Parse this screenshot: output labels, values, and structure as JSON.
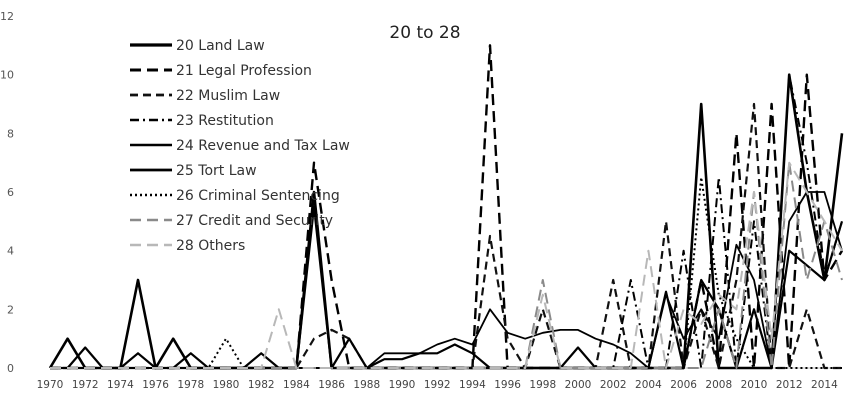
{
  "chart_data": {
    "type": "line",
    "title": "20 to 28",
    "xlabel": "",
    "ylabel": "",
    "ylim": [
      0,
      12
    ],
    "yticks": [
      0,
      2,
      4,
      6,
      8,
      10,
      12
    ],
    "xlim": [
      1970,
      2015
    ],
    "xtick_labels": [
      "1970",
      "1972",
      "1974",
      "1976",
      "1978",
      "1980",
      "1982",
      "1984",
      "1986",
      "1988",
      "1990",
      "1992",
      "1994",
      "1996",
      "1998",
      "2000",
      "2002",
      "2004",
      "2006",
      "2008",
      "2010",
      "2012",
      "2014"
    ],
    "grid": false,
    "legend_position": "upper-left",
    "x": [
      1970,
      1971,
      1972,
      1973,
      1974,
      1975,
      1976,
      1977,
      1978,
      1979,
      1980,
      1981,
      1982,
      1983,
      1984,
      1985,
      1986,
      1987,
      1988,
      1989,
      1990,
      1991,
      1992,
      1993,
      1994,
      1995,
      1996,
      1997,
      1998,
      1999,
      2000,
      2001,
      2002,
      2003,
      2004,
      2005,
      2006,
      2007,
      2008,
      2009,
      2010,
      2011,
      2012,
      2013,
      2014,
      2015
    ],
    "series": [
      {
        "name": "20 Land Law",
        "color": "#000000",
        "dash": "solid",
        "width": 2.6,
        "values": [
          0,
          1,
          0,
          0,
          0,
          3,
          0,
          1,
          0,
          0,
          0,
          0,
          0,
          0,
          0,
          6,
          0,
          0,
          0,
          0,
          0,
          0,
          0,
          0,
          0,
          0,
          0,
          0,
          0,
          0,
          0,
          0,
          0,
          0,
          0,
          0,
          0,
          9,
          0,
          0,
          0,
          0,
          10,
          6,
          3,
          8
        ]
      },
      {
        "name": "21 Legal Profession",
        "color": "#000000",
        "dash": "long-dash",
        "width": 2.4,
        "values": [
          0,
          0,
          0,
          0,
          0,
          0,
          0,
          0,
          0,
          0,
          0,
          0,
          0,
          0,
          0,
          7,
          3,
          0,
          0,
          0,
          0,
          0,
          0,
          0,
          0,
          11,
          0,
          0,
          0,
          0,
          0,
          0,
          0,
          0,
          0,
          0,
          0,
          3,
          0,
          8,
          0,
          9,
          0,
          10,
          3,
          4
        ]
      },
      {
        "name": "22 Muslim Law",
        "color": "#111111",
        "dash": "dash",
        "width": 2.2,
        "values": [
          0,
          0,
          0,
          0,
          0,
          0,
          0,
          0,
          0,
          0,
          0,
          0,
          0,
          0,
          0,
          1,
          1.3,
          1,
          0,
          0,
          0,
          0,
          0,
          0,
          0,
          4.5,
          1,
          0,
          2,
          0,
          0,
          0,
          3,
          0,
          0,
          5,
          0,
          2,
          0,
          3,
          9,
          0,
          0,
          2,
          0,
          0
        ]
      },
      {
        "name": "23 Restitution",
        "color": "#000000",
        "dash": "dash-dot",
        "width": 2.0,
        "values": [
          0,
          0,
          0,
          0,
          0,
          0,
          0,
          0,
          0,
          0,
          0,
          0,
          0,
          0,
          0,
          0,
          0,
          0,
          0,
          0,
          0,
          0,
          0,
          0,
          0,
          0,
          0,
          0,
          0,
          0,
          0,
          0,
          0,
          3,
          0,
          0,
          4,
          0,
          6.5,
          0,
          5,
          0,
          10,
          7,
          3,
          5
        ]
      },
      {
        "name": "24 Revenue and Tax Law",
        "color": "#000000",
        "dash": "solid",
        "width": 1.8,
        "values": [
          0,
          0,
          0,
          0,
          0,
          0,
          0,
          0,
          0,
          0,
          0,
          0,
          0,
          0,
          0,
          0,
          0,
          0,
          0,
          0.5,
          0.5,
          0.5,
          0.8,
          1,
          0.8,
          2,
          1.2,
          1,
          1.2,
          1.3,
          1.3,
          1,
          0.8,
          0.5,
          0,
          2.5,
          1,
          2,
          1,
          4.2,
          3,
          0,
          5,
          6,
          6,
          4
        ]
      },
      {
        "name": "25 Tort Law",
        "color": "#000000",
        "dash": "solid",
        "width": 2.2,
        "values": [
          0,
          0,
          0.7,
          0,
          0,
          0.5,
          0,
          0,
          0.5,
          0,
          0,
          0,
          0.5,
          0,
          0,
          5.5,
          0,
          1,
          0,
          0.3,
          0.3,
          0.5,
          0.5,
          0.8,
          0.5,
          0,
          0,
          0,
          0,
          0,
          0.7,
          0,
          0,
          0,
          0,
          2.6,
          0,
          3,
          2,
          0,
          2,
          0,
          4,
          3.5,
          3,
          5
        ]
      },
      {
        "name": "26 Criminal Sentencing",
        "color": "#000000",
        "dash": "dot",
        "width": 2.0,
        "values": [
          0,
          0,
          0,
          0,
          0,
          0,
          0,
          0,
          0,
          0,
          1,
          0,
          0,
          0,
          0,
          0,
          0,
          0,
          0,
          0,
          0,
          0,
          0,
          0,
          0,
          0,
          0,
          0,
          0,
          0,
          0,
          0,
          0,
          0,
          0,
          0,
          0,
          6.5,
          2.5,
          1,
          0,
          0,
          0,
          0,
          0,
          0
        ]
      },
      {
        "name": "27 Credit and Security",
        "color": "#8a8a8a",
        "dash": "long-dash",
        "width": 2.0,
        "values": [
          0,
          0,
          0,
          0,
          0,
          0,
          0,
          0,
          0,
          0,
          0,
          0,
          0,
          0,
          0,
          0,
          0,
          0,
          0,
          0,
          0,
          0,
          0,
          0,
          0,
          0,
          0,
          0,
          3,
          0,
          0,
          0,
          0,
          0,
          0,
          0,
          0,
          0,
          2,
          0,
          6,
          0,
          7,
          3,
          5,
          3
        ]
      },
      {
        "name": "28 Others",
        "color": "#b8b8b8",
        "dash": "long-dash",
        "width": 2.0,
        "values": [
          0,
          0,
          0,
          0,
          0,
          0,
          0,
          0,
          0,
          0,
          0,
          0,
          0,
          2,
          0,
          0,
          0,
          0,
          0,
          0,
          0,
          0,
          0,
          0,
          0,
          0,
          0,
          0,
          2.5,
          0,
          0,
          0,
          0,
          0,
          4,
          0,
          2,
          1.5,
          2.5,
          2,
          6,
          1,
          7,
          6,
          5,
          4
        ]
      }
    ]
  }
}
